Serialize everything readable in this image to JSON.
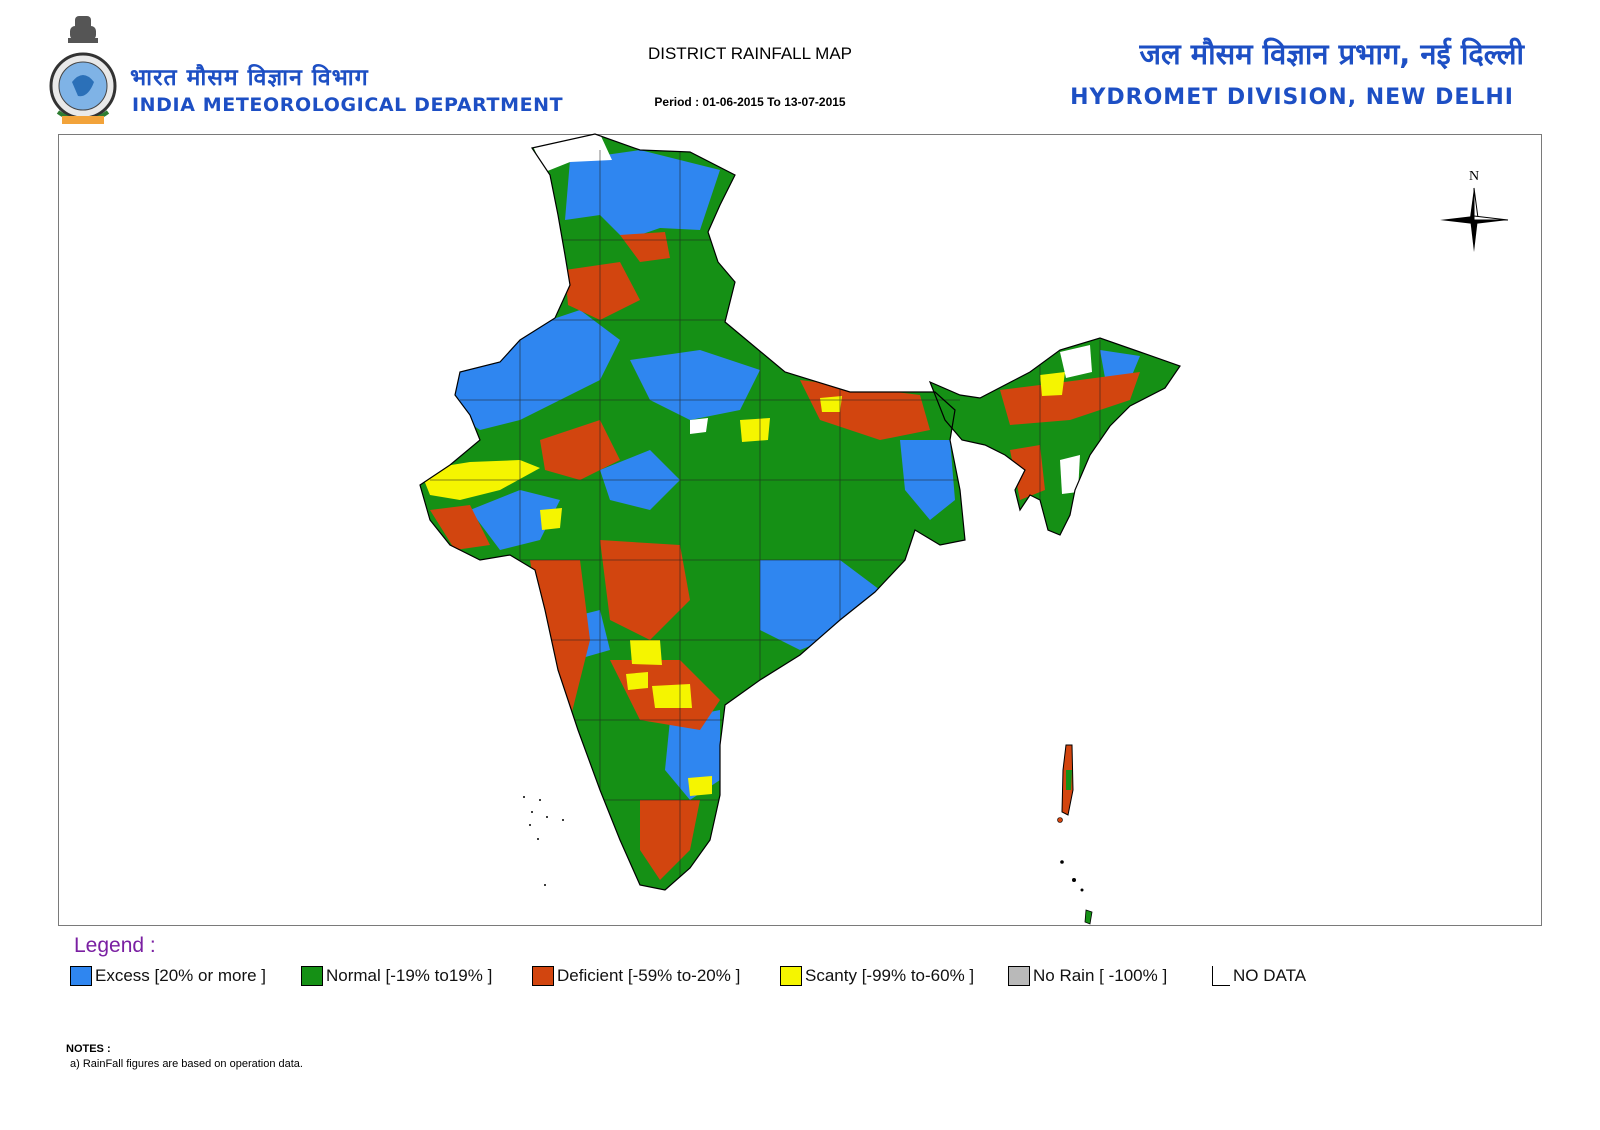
{
  "header": {
    "org_hindi": "भारत मौसम विज्ञान विभाग",
    "org_english": "INDIA METEOROLOGICAL DEPARTMENT",
    "map_title": "DISTRICT RAINFALL MAP",
    "period": "Period : 01-06-2015 To 13-07-2015",
    "division_hindi": "जल मौसम विज्ञान प्रभाग, नई दिल्ली",
    "division_english": "HYDROMET DIVISION, NEW DELHI"
  },
  "map": {
    "north_label": "N"
  },
  "legend": {
    "title": "Legend :",
    "items": [
      {
        "label": "Excess [20% or more ]",
        "color": "#2f86f0"
      },
      {
        "label": "Normal [-19%  to19% ]",
        "color": "#159015"
      },
      {
        "label": "Deficient [-59%  to-20% ]",
        "color": "#d2450f"
      },
      {
        "label": "Scanty [-99%  to-60% ]",
        "color": "#f5f500"
      },
      {
        "label": "No Rain [  -100% ]",
        "color": "#b9b9b9"
      },
      {
        "label": "NO DATA",
        "color": "#ffffff"
      }
    ]
  },
  "notes": {
    "title": "NOTES :",
    "lines": [
      "a) RainFall figures are based on operation data."
    ]
  }
}
